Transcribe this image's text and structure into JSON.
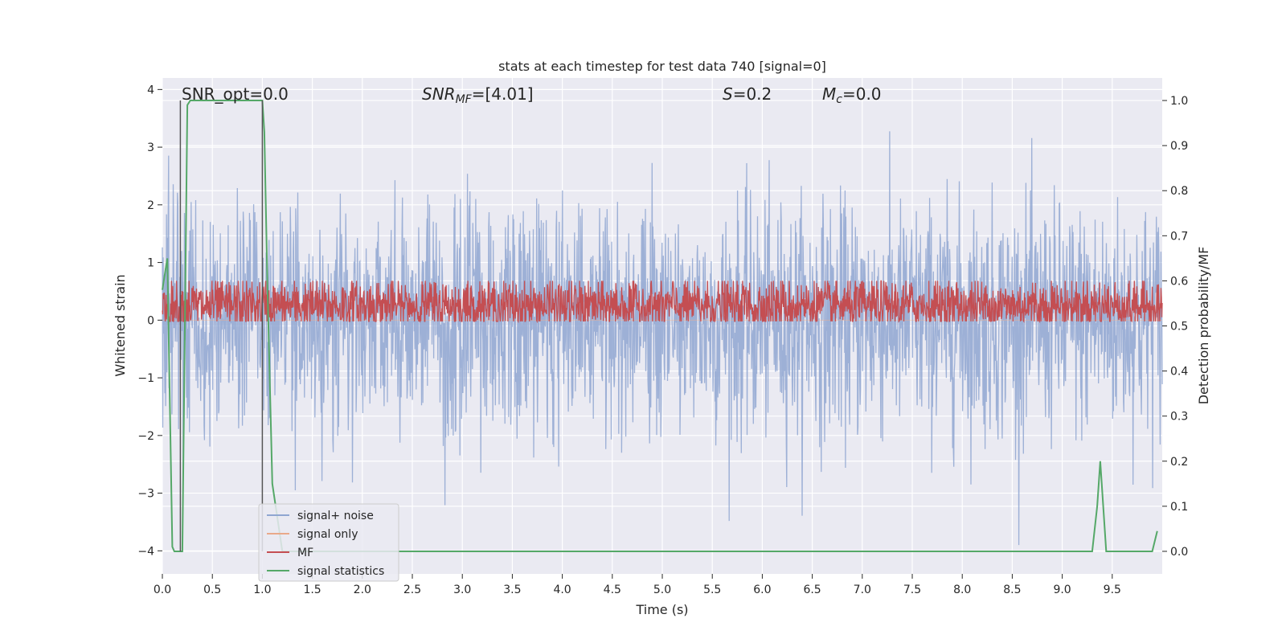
{
  "chart_data": {
    "type": "line",
    "title": "stats at each timestep for test data 740 [signal=0]",
    "xlabel": "Time (s)",
    "ylabel": "Whitened strain",
    "ylabel_right": "Detection probability/MF",
    "xlim": [
      0.0,
      10.0
    ],
    "ylim": [
      -4.4,
      4.2
    ],
    "ylim_right": [
      -0.05,
      1.05
    ],
    "x_ticks": [
      "0.0",
      "0.5",
      "1.0",
      "1.5",
      "2.0",
      "2.5",
      "3.0",
      "3.5",
      "4.0",
      "4.5",
      "5.0",
      "5.5",
      "6.0",
      "6.5",
      "7.0",
      "7.5",
      "8.0",
      "8.5",
      "9.0",
      "9.5"
    ],
    "x_tick_values": [
      0.0,
      0.5,
      1.0,
      1.5,
      2.0,
      2.5,
      3.0,
      3.5,
      4.0,
      4.5,
      5.0,
      5.5,
      6.0,
      6.5,
      7.0,
      7.5,
      8.0,
      8.5,
      9.0,
      9.5
    ],
    "y_ticks": [
      "−4",
      "−3",
      "−2",
      "−1",
      "0",
      "1",
      "2",
      "3",
      "4"
    ],
    "y_tick_values": [
      -4,
      -3,
      -2,
      -1,
      0,
      1,
      2,
      3,
      4
    ],
    "y_right_ticks": [
      "0.0",
      "0.1",
      "0.2",
      "0.3",
      "0.4",
      "0.5",
      "0.6",
      "0.7",
      "0.8",
      "0.9",
      "1.0"
    ],
    "y_right_tick_values": [
      0.0,
      0.1,
      0.2,
      0.3,
      0.4,
      0.5,
      0.6,
      0.7,
      0.8,
      0.9,
      1.0
    ],
    "grid": true,
    "annotations": {
      "snr_opt": "SNR_opt=0.0",
      "snr_mf_base": "SNR",
      "snr_mf_sub": "MF",
      "snr_mf_val": "=[4.01]",
      "s_base": "S",
      "s_val": "=0.2",
      "mc_base": "M",
      "mc_sub": "c",
      "mc_val": "=0.0"
    },
    "legend_placement": "lower-left",
    "series": [
      {
        "name": "signal+ noise",
        "color": "#8fa6d1",
        "axis": "left",
        "kind": "noise",
        "x_range": [
          0.0,
          10.0
        ],
        "sigma": 1.0
      },
      {
        "name": "signal only",
        "color": "#e9a98a",
        "axis": "left",
        "kind": "flat",
        "value": 0.0
      },
      {
        "name": "MF",
        "color": "#c44e52",
        "axis": "right",
        "kind": "mf_band",
        "center": 0.545,
        "spread": 0.03
      },
      {
        "name": "signal statistics",
        "color": "#55a868",
        "axis": "right",
        "kind": "line",
        "x": [
          0.0,
          0.05,
          0.1,
          0.12,
          0.15,
          0.2,
          0.25,
          0.28,
          0.3,
          0.5,
          0.7,
          0.9,
          1.0,
          1.02,
          1.05,
          1.1,
          1.2,
          1.5,
          2.0,
          3.0,
          4.0,
          5.0,
          6.0,
          7.0,
          8.0,
          9.0,
          9.2,
          9.3,
          9.35,
          9.38,
          9.44,
          9.5,
          9.7,
          9.9,
          9.95
        ],
        "y": [
          0.58,
          0.65,
          0.01,
          0.0,
          0.0,
          0.0,
          0.99,
          1.0,
          1.0,
          1.0,
          1.0,
          1.0,
          1.0,
          0.93,
          0.6,
          0.15,
          0.0,
          0.0,
          0.0,
          0.0,
          0.0,
          0.0,
          0.0,
          0.0,
          0.0,
          0.0,
          0.0,
          0.0,
          0.1,
          0.2,
          0.0,
          0.0,
          0.0,
          0.0,
          0.045
        ]
      }
    ],
    "vertical_lines": [
      {
        "x": 0.18,
        "color": "#555555"
      },
      {
        "x": 1.0,
        "color": "#555555"
      }
    ]
  }
}
